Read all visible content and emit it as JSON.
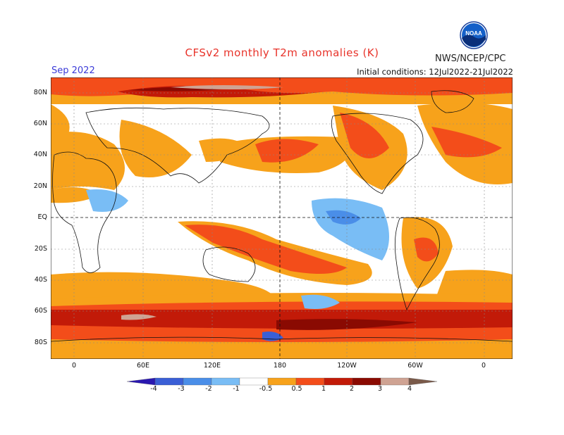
{
  "header": {
    "title": "CFSv2 monthly T2m anomalies (K)",
    "agency": "NWS/NCEP/CPC",
    "logo_text": "NOAA",
    "month": "Sep 2022",
    "initial_conditions": "Initial conditions: 12Jul2022-21Jul2022"
  },
  "axes": {
    "y_labels": [
      "80N",
      "60N",
      "40N",
      "20N",
      "EQ",
      "20S",
      "40S",
      "60S",
      "80S"
    ],
    "x_labels": [
      "0",
      "60E",
      "120E",
      "180",
      "120W",
      "60W",
      "0"
    ]
  },
  "colorbar": {
    "labels": [
      "-4",
      "-3",
      "-2",
      "-1",
      "-0.5",
      "0.5",
      "1",
      "2",
      "3",
      "4"
    ],
    "colors": [
      "#2a18b0",
      "#3a5fd6",
      "#4a8ee8",
      "#79bdf5",
      "#ffffff",
      "#f7a21b",
      "#f34d1a",
      "#c21a08",
      "#8a0a02",
      "#cfa393",
      "#7a5a4a"
    ]
  }
}
